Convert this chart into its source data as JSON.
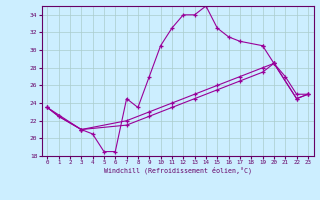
{
  "xlabel": "Windchill (Refroidissement éolien,°C)",
  "line_color": "#990099",
  "bg_color": "#cceeff",
  "grid_color": "#aacccc",
  "ylim": [
    18,
    35
  ],
  "xlim": [
    -0.5,
    23.5
  ],
  "yticks": [
    18,
    20,
    22,
    24,
    26,
    28,
    30,
    32,
    34
  ],
  "xticks": [
    0,
    1,
    2,
    3,
    4,
    5,
    6,
    7,
    8,
    9,
    10,
    11,
    12,
    13,
    14,
    15,
    16,
    17,
    18,
    19,
    20,
    21,
    22,
    23
  ],
  "line1_x": [
    0,
    1,
    3,
    4,
    5,
    6,
    7,
    8,
    9,
    10,
    11,
    12,
    13,
    14,
    15,
    16,
    17,
    19
  ],
  "line1_y": [
    23.5,
    22.5,
    21.0,
    20.5,
    18.5,
    18.5,
    24.5,
    23.5,
    27.0,
    30.5,
    32.5,
    34.0,
    34.0,
    35.0,
    32.5,
    31.5,
    31.0,
    30.5
  ],
  "line2_x": [
    19,
    20,
    21,
    22,
    23
  ],
  "line2_y": [
    30.5,
    28.5,
    27.0,
    25.0,
    25.0
  ],
  "line3_x": [
    0,
    1,
    3,
    7,
    9,
    11,
    13,
    15,
    17,
    19,
    20
  ],
  "line3_y": [
    23.5,
    22.5,
    21.0,
    22.0,
    23.0,
    24.0,
    25.0,
    26.0,
    27.0,
    28.0,
    28.5
  ],
  "line4_x": [
    20,
    22,
    23
  ],
  "line4_y": [
    28.5,
    24.5,
    25.0
  ],
  "line5_x": [
    0,
    3,
    7,
    9,
    11,
    13,
    15,
    17,
    19,
    20,
    22,
    23
  ],
  "line5_y": [
    23.5,
    21.0,
    21.5,
    22.5,
    23.5,
    24.5,
    25.5,
    26.5,
    27.5,
    28.5,
    24.5,
    25.0
  ]
}
